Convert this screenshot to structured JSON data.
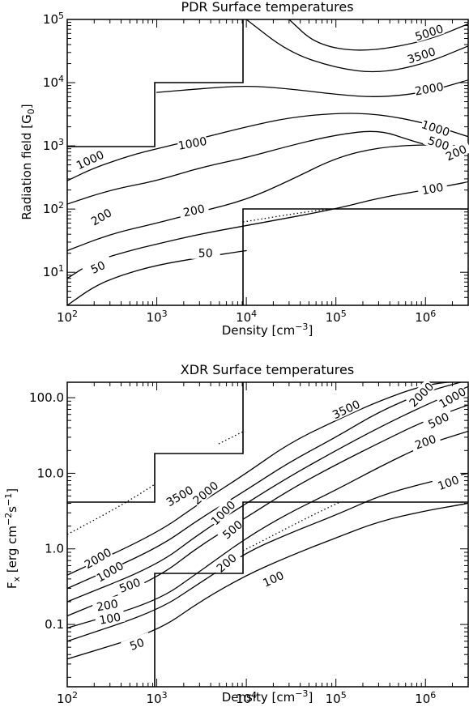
{
  "chart_data": [
    {
      "type": "contour",
      "title": "PDR Surface temperatures",
      "xlabel": "Density [cm^-3]",
      "ylabel": "Radiation field [G_0]",
      "xscale": "log",
      "yscale": "log",
      "xlim": [
        100,
        3000000
      ],
      "ylim": [
        3,
        100000
      ],
      "xticks": [
        {
          "v": 100,
          "m": "10",
          "e": "2"
        },
        {
          "v": 1000,
          "m": "10",
          "e": "3"
        },
        {
          "v": 10000,
          "m": "10",
          "e": "4"
        },
        {
          "v": 100000,
          "m": "10",
          "e": "5"
        },
        {
          "v": 1000000,
          "m": "10",
          "e": "6"
        }
      ],
      "yticks": [
        {
          "v": 10,
          "m": "10",
          "e": "1"
        },
        {
          "v": 100,
          "m": "10",
          "e": "2"
        },
        {
          "v": 1000,
          "m": "10",
          "e": "3"
        },
        {
          "v": 10000,
          "m": "10",
          "e": "4"
        },
        {
          "v": 100000,
          "m": "10",
          "e": "5"
        }
      ],
      "contours": [
        {
          "level": "5000",
          "points": [
            [
              30000,
              100000
            ],
            [
              60000,
              40000
            ],
            [
              200000,
              30000
            ],
            [
              1000000,
              45000
            ],
            [
              3000000,
              85000
            ]
          ],
          "label_at": [
            1100000,
            62000
          ],
          "label_angle": -18
        },
        {
          "level": "3500",
          "points": [
            [
              10000,
              100000
            ],
            [
              30000,
              30000
            ],
            [
              100000,
              17000
            ],
            [
              300000,
              14000
            ],
            [
              1000000,
              20000
            ],
            [
              3000000,
              38000
            ]
          ],
          "label_at": [
            900000,
            27000
          ],
          "label_angle": -18
        },
        {
          "level": "2000",
          "points": [
            [
              1000,
              7000
            ],
            [
              3000,
              8000
            ],
            [
              10000,
              9000
            ],
            [
              30000,
              8000
            ],
            [
              100000,
              6500
            ],
            [
              300000,
              5800
            ],
            [
              1000000,
              7000
            ],
            [
              3000000,
              11000
            ]
          ],
          "label_at": [
            1100000,
            8000
          ],
          "label_angle": -10
        },
        {
          "level": "1000",
          "points": [
            [
              100,
              280
            ],
            [
              200,
              450
            ],
            [
              500,
              700
            ],
            [
              1000,
              900
            ],
            [
              3000,
              1300
            ],
            [
              10000,
              2000
            ],
            [
              30000,
              2800
            ],
            [
              100000,
              3300
            ],
            [
              300000,
              3200
            ],
            [
              1000000,
              2300
            ],
            [
              3000000,
              1400
            ]
          ],
          "label_at": [
            1300000,
            1900
          ],
          "label_angle": 18
        },
        {
          "level": "500",
          "points": [
            [
              100,
              120
            ],
            [
              300,
              200
            ],
            [
              1000,
              280
            ],
            [
              3000,
              450
            ],
            [
              10000,
              650
            ],
            [
              30000,
              1000
            ],
            [
              100000,
              1500
            ],
            [
              300000,
              1800
            ],
            [
              700000,
              1200
            ],
            [
              1500000,
              900
            ]
          ],
          "label_at": [
            1400000,
            1100
          ],
          "label_angle": 18
        },
        {
          "level": "200",
          "points": [
            [
              100,
              22
            ],
            [
              300,
              40
            ],
            [
              1000,
              60
            ],
            [
              3000,
              90
            ],
            [
              10000,
              140
            ],
            [
              30000,
              280
            ],
            [
              100000,
              650
            ],
            [
              300000,
              950
            ],
            [
              1000000,
              1050
            ],
            [
              3000000,
              1000
            ]
          ],
          "label_at": [
            2200000,
            780
          ],
          "label_angle": -25
        },
        {
          "level": "100",
          "points": [
            [
              100,
              8
            ],
            [
              200,
              15
            ],
            [
              500,
              22
            ],
            [
              1000,
              28
            ],
            [
              3000,
              40
            ],
            [
              10000,
              55
            ],
            [
              100000,
              100
            ],
            [
              300000,
              150
            ],
            [
              1000000,
              200
            ],
            [
              3000000,
              270
            ]
          ],
          "label_at": [
            1200000,
            210
          ],
          "label_angle": -10
        },
        {
          "level": "50",
          "points": [
            [
              100,
              3
            ],
            [
              200,
              6
            ],
            [
              400,
              9
            ],
            [
              1000,
              13
            ],
            [
              3000,
              17
            ],
            [
              10000,
              22
            ]
          ],
          "label_at": [
            3500,
            20
          ],
          "label_angle": 0
        }
      ],
      "inline_labels": [
        {
          "text": "1000",
          "at": [
            180,
            600
          ],
          "angle": -25
        },
        {
          "text": "1000",
          "at": [
            2500,
            1100
          ],
          "angle": -10
        },
        {
          "text": "200",
          "at": [
            2600,
            95
          ],
          "angle": -12
        },
        {
          "text": "200",
          "at": [
            240,
            75
          ],
          "angle": -30
        },
        {
          "text": "50",
          "at": [
            220,
            12
          ],
          "angle": -25
        }
      ]
    },
    {
      "type": "contour",
      "title": "XDR Surface temperatures",
      "xlabel": "Density [cm^-3]",
      "ylabel": "F_x [erg cm^-2 s^-1]",
      "xscale": "log",
      "yscale": "log",
      "xlim": [
        100,
        3000000
      ],
      "ylim": [
        0.015,
        160
      ],
      "xticks": [
        {
          "v": 100,
          "m": "10",
          "e": "2"
        },
        {
          "v": 1000,
          "m": "10",
          "e": "3"
        },
        {
          "v": 10000,
          "m": "10",
          "e": "4"
        },
        {
          "v": 100000,
          "m": "10",
          "e": "5"
        },
        {
          "v": 1000000,
          "m": "10",
          "e": "6"
        }
      ],
      "yticks": [
        {
          "v": 0.1,
          "m": "0.1",
          "e": ""
        },
        {
          "v": 1,
          "m": "1.0",
          "e": ""
        },
        {
          "v": 10,
          "m": "10.0",
          "e": ""
        },
        {
          "v": 100,
          "m": "100.0",
          "e": ""
        }
      ],
      "contours": [
        {
          "level": "3500",
          "points": [
            [
              100,
              0.45
            ],
            [
              1000,
              1.6
            ],
            [
              3000,
              4
            ],
            [
              10000,
              10
            ],
            [
              30000,
              25
            ],
            [
              100000,
              50
            ],
            [
              300000,
              90
            ],
            [
              1000000,
              150
            ],
            [
              3000000,
              170
            ]
          ],
          "label_at": [
            130000,
            70
          ],
          "label_angle": -25
        },
        {
          "level": "2000",
          "points": [
            [
              100,
              0.3
            ],
            [
              1000,
              1.0
            ],
            [
              3000,
              2.5
            ],
            [
              10000,
              6
            ],
            [
              30000,
              14
            ],
            [
              100000,
              30
            ],
            [
              300000,
              65
            ],
            [
              1000000,
              120
            ],
            [
              3000000,
              170
            ]
          ],
          "label_at": [
            900000,
            110
          ],
          "label_angle": -45
        },
        {
          "level": "1000",
          "points": [
            [
              100,
              0.2
            ],
            [
              1000,
              0.6
            ],
            [
              3000,
              1.6
            ],
            [
              10000,
              4
            ],
            [
              30000,
              9
            ],
            [
              100000,
              20
            ],
            [
              300000,
              40
            ],
            [
              1000000,
              80
            ],
            [
              3000000,
              140
            ]
          ],
          "label_at": [
            2000000,
            100
          ],
          "label_angle": -30
        },
        {
          "level": "500",
          "points": [
            [
              100,
              0.13
            ],
            [
              1000,
              0.4
            ],
            [
              3000,
              1.1
            ],
            [
              10000,
              2.6
            ],
            [
              30000,
              6
            ],
            [
              100000,
              13
            ],
            [
              300000,
              25
            ],
            [
              1000000,
              50
            ],
            [
              3000000,
              80
            ]
          ],
          "label_at": [
            1400000,
            50
          ],
          "label_angle": -25
        },
        {
          "level": "200",
          "points": [
            [
              100,
              0.09
            ],
            [
              1000,
              0.2
            ],
            [
              3000,
              0.5
            ],
            [
              10000,
              1.4
            ],
            [
              30000,
              3
            ],
            [
              100000,
              6
            ],
            [
              300000,
              12
            ],
            [
              1000000,
              24
            ],
            [
              3000000,
              36
            ]
          ],
          "label_at": [
            1000000,
            26
          ],
          "label_angle": -20
        },
        {
          "level": "100",
          "points": [
            [
              100,
              0.06
            ],
            [
              1000,
              0.15
            ],
            [
              3000,
              0.35
            ],
            [
              10000,
              0.9
            ],
            [
              30000,
              1.6
            ],
            [
              100000,
              2.8
            ],
            [
              300000,
              5
            ],
            [
              1000000,
              7.5
            ],
            [
              3000000,
              10
            ]
          ],
          "label_at": [
            1800000,
            7.5
          ],
          "label_angle": -20
        },
        {
          "level": "50",
          "points": [
            [
              100,
              0.035
            ],
            [
              1000,
              0.08
            ],
            [
              3000,
              0.2
            ],
            [
              10000,
              0.45
            ],
            [
              30000,
              0.8
            ],
            [
              100000,
              1.4
            ],
            [
              300000,
              2.3
            ],
            [
              1000000,
              3.2
            ],
            [
              3000000,
              4
            ]
          ],
          "label_at": [
            600,
            0.055
          ],
          "label_angle": -20
        }
      ],
      "inline_labels": [
        {
          "text": "3500",
          "at": [
            1800,
            5
          ],
          "angle": -30
        },
        {
          "text": "2000",
          "at": [
            3500,
            5.5
          ],
          "angle": -40
        },
        {
          "text": "1000",
          "at": [
            5500,
            3
          ],
          "angle": -45
        },
        {
          "text": "500",
          "at": [
            7000,
            1.8
          ],
          "angle": -40
        },
        {
          "text": "2000",
          "at": [
            220,
            0.75
          ],
          "angle": -30
        },
        {
          "text": "1000",
          "at": [
            300,
            0.5
          ],
          "angle": -30
        },
        {
          "text": "500",
          "at": [
            500,
            0.33
          ],
          "angle": -20
        },
        {
          "text": "200",
          "at": [
            6000,
            0.65
          ],
          "angle": -40
        },
        {
          "text": "100",
          "at": [
            20000,
            0.4
          ],
          "angle": -25
        },
        {
          "text": "200",
          "at": [
            280,
            0.18
          ],
          "angle": -10
        },
        {
          "text": "100",
          "at": [
            300,
            0.12
          ],
          "angle": -10
        }
      ]
    }
  ]
}
